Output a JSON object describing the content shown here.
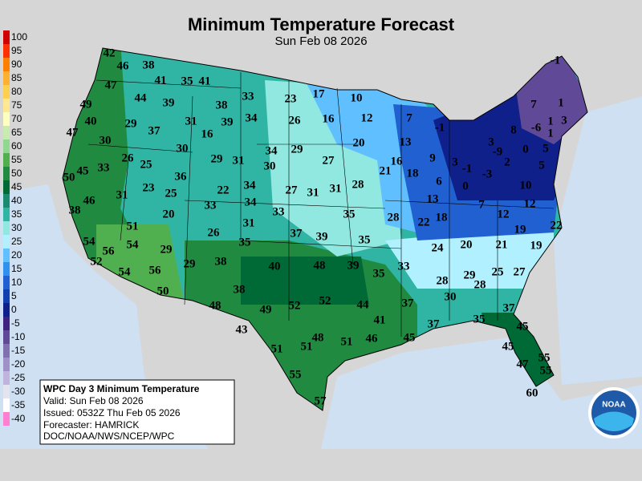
{
  "header": {
    "title": "Minimum Temperature Forecast",
    "subtitle": "Sun Feb 08 2026"
  },
  "legend": [
    {
      "value": 100,
      "color": "#d00000"
    },
    {
      "value": 95,
      "color": "#ff3000"
    },
    {
      "value": 90,
      "color": "#ff8000"
    },
    {
      "value": 85,
      "color": "#ffb030"
    },
    {
      "value": 80,
      "color": "#ffd050"
    },
    {
      "value": 75,
      "color": "#ffe890"
    },
    {
      "value": 70,
      "color": "#ffffc0"
    },
    {
      "value": 65,
      "color": "#c8ecb0"
    },
    {
      "value": 60,
      "color": "#90d890"
    },
    {
      "value": 55,
      "color": "#50b050"
    },
    {
      "value": 50,
      "color": "#208a40"
    },
    {
      "value": 45,
      "color": "#006a36"
    },
    {
      "value": 40,
      "color": "#1a8a70"
    },
    {
      "value": 35,
      "color": "#30b4a4"
    },
    {
      "value": 30,
      "color": "#90e8e0"
    },
    {
      "value": 25,
      "color": "#b0f0ff"
    },
    {
      "value": 20,
      "color": "#60c0ff"
    },
    {
      "value": 15,
      "color": "#3090f0"
    },
    {
      "value": 10,
      "color": "#2060d0"
    },
    {
      "value": 5,
      "color": "#1040b0"
    },
    {
      "value": 0,
      "color": "#10208a"
    },
    {
      "value": -5,
      "color": "#402080"
    },
    {
      "value": -10,
      "color": "#604a98"
    },
    {
      "value": -15,
      "color": "#8070b0"
    },
    {
      "value": -20,
      "color": "#a090c8"
    },
    {
      "value": -25,
      "color": "#c0b4dc"
    },
    {
      "value": -30,
      "color": "#e4e4ee"
    },
    {
      "value": -35,
      "color": "#ffffff"
    },
    {
      "value": -40,
      "color": "#ff80d0"
    }
  ],
  "info": {
    "lines": [
      "WPC Day 3 Minimum Temperature",
      "Valid: Sun Feb 08 2026",
      "Issued: 0532Z Thu Feb 05 2026",
      "Forecaster: HAMRICK",
      "DOC/NOAA/NWS/NCEP/WPC"
    ]
  },
  "logo": {
    "text": "NOAA"
  },
  "stations": [
    42,
    46,
    38,
    41,
    35,
    41,
    47,
    44,
    39,
    38,
    33,
    49,
    40,
    29,
    37,
    31,
    39,
    34,
    16,
    30,
    26,
    25,
    30,
    29,
    31,
    34,
    29,
    23,
    17,
    10,
    26,
    16,
    12,
    7,
    -1,
    20,
    13,
    27,
    16,
    21,
    18,
    9,
    3,
    47,
    50,
    45,
    33,
    36,
    23,
    25,
    22,
    34,
    30,
    27,
    31,
    31,
    28,
    46,
    38,
    31,
    20,
    33,
    34,
    31,
    33,
    35,
    28,
    13,
    22,
    18,
    6,
    0,
    -3,
    -1,
    -1,
    -9,
    1,
    1,
    7,
    3,
    8,
    -6,
    1,
    3,
    0,
    5,
    2,
    5,
    10,
    12,
    7,
    12,
    22,
    19,
    19,
    21,
    20,
    24,
    51,
    54,
    56,
    54,
    52,
    54,
    56,
    29,
    29,
    38,
    26,
    35,
    37,
    39,
    35,
    40,
    48,
    39,
    35,
    33,
    50,
    38,
    28,
    29,
    28,
    25,
    27,
    30,
    48,
    49,
    52,
    52,
    44,
    37,
    37,
    41,
    35,
    45,
    43,
    37,
    46,
    45,
    48,
    51,
    51,
    51,
    45,
    55,
    47,
    55,
    55,
    57,
    60
  ]
}
